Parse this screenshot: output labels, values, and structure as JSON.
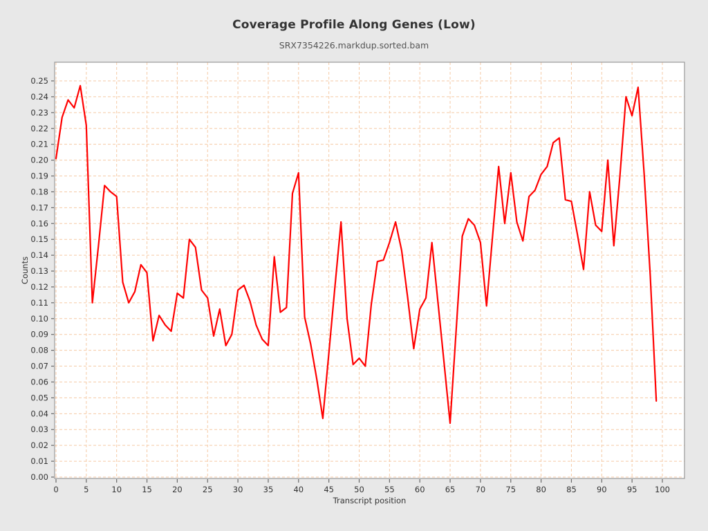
{
  "figure": {
    "title": "Coverage Profile Along Genes (Low)",
    "subtitle": "SRX7354226.markdup.sorted.bam"
  },
  "colors": {
    "line": "#ff0000",
    "grid": "#f5c9a4",
    "frame": "#999999",
    "axis": "#666666",
    "plot_background": "#ffffff",
    "page_background": "#e8e8e8",
    "tick_text": "#333333"
  },
  "chart_data": {
    "type": "line",
    "title": "Coverage Profile Along Genes (Low)",
    "subtitle": "SRX7354226.markdup.sorted.bam",
    "xlabel": "Transcript position",
    "ylabel": "Counts",
    "xlim": [
      0,
      100
    ],
    "ylim": [
      0,
      0.25
    ],
    "x_start": 0,
    "x_step": 1,
    "grid": {
      "show": true,
      "style": "dashed",
      "color": "#f5c9a4"
    },
    "legend": "none",
    "x_ticks": [
      "0",
      "5",
      "10",
      "15",
      "20",
      "25",
      "30",
      "35",
      "40",
      "45",
      "50",
      "55",
      "60",
      "65",
      "70",
      "75",
      "80",
      "85",
      "90",
      "95",
      "100"
    ],
    "y_ticks": [
      "0.00",
      "0.01",
      "0.02",
      "0.03",
      "0.04",
      "0.05",
      "0.06",
      "0.07",
      "0.08",
      "0.09",
      "0.10",
      "0.11",
      "0.12",
      "0.13",
      "0.14",
      "0.15",
      "0.16",
      "0.17",
      "0.18",
      "0.19",
      "0.20",
      "0.21",
      "0.22",
      "0.23",
      "0.24",
      "0.25"
    ],
    "series": [
      {
        "name": "SRX7354226.markdup.sorted.bam",
        "color": "#ff0000",
        "values": [
          0.201,
          0.227,
          0.238,
          0.233,
          0.247,
          0.222,
          0.11,
          0.146,
          0.184,
          0.18,
          0.177,
          0.123,
          0.11,
          0.117,
          0.134,
          0.129,
          0.086,
          0.102,
          0.096,
          0.092,
          0.116,
          0.113,
          0.15,
          0.145,
          0.118,
          0.113,
          0.089,
          0.106,
          0.083,
          0.09,
          0.118,
          0.121,
          0.111,
          0.096,
          0.087,
          0.083,
          0.139,
          0.104,
          0.107,
          0.179,
          0.192,
          0.101,
          0.084,
          0.062,
          0.037,
          0.078,
          0.12,
          0.161,
          0.1,
          0.071,
          0.075,
          0.07,
          0.109,
          0.136,
          0.137,
          0.148,
          0.161,
          0.143,
          0.113,
          0.081,
          0.106,
          0.113,
          0.148,
          0.11,
          0.072,
          0.034,
          0.093,
          0.152,
          0.163,
          0.159,
          0.148,
          0.108,
          0.152,
          0.196,
          0.16,
          0.192,
          0.161,
          0.149,
          0.177,
          0.181,
          0.191,
          0.196,
          0.211,
          0.214,
          0.175,
          0.174,
          0.153,
          0.131,
          0.18,
          0.159,
          0.155,
          0.2,
          0.146,
          0.19,
          0.24,
          0.228,
          0.246,
          0.191,
          0.127,
          0.048
        ]
      }
    ]
  }
}
